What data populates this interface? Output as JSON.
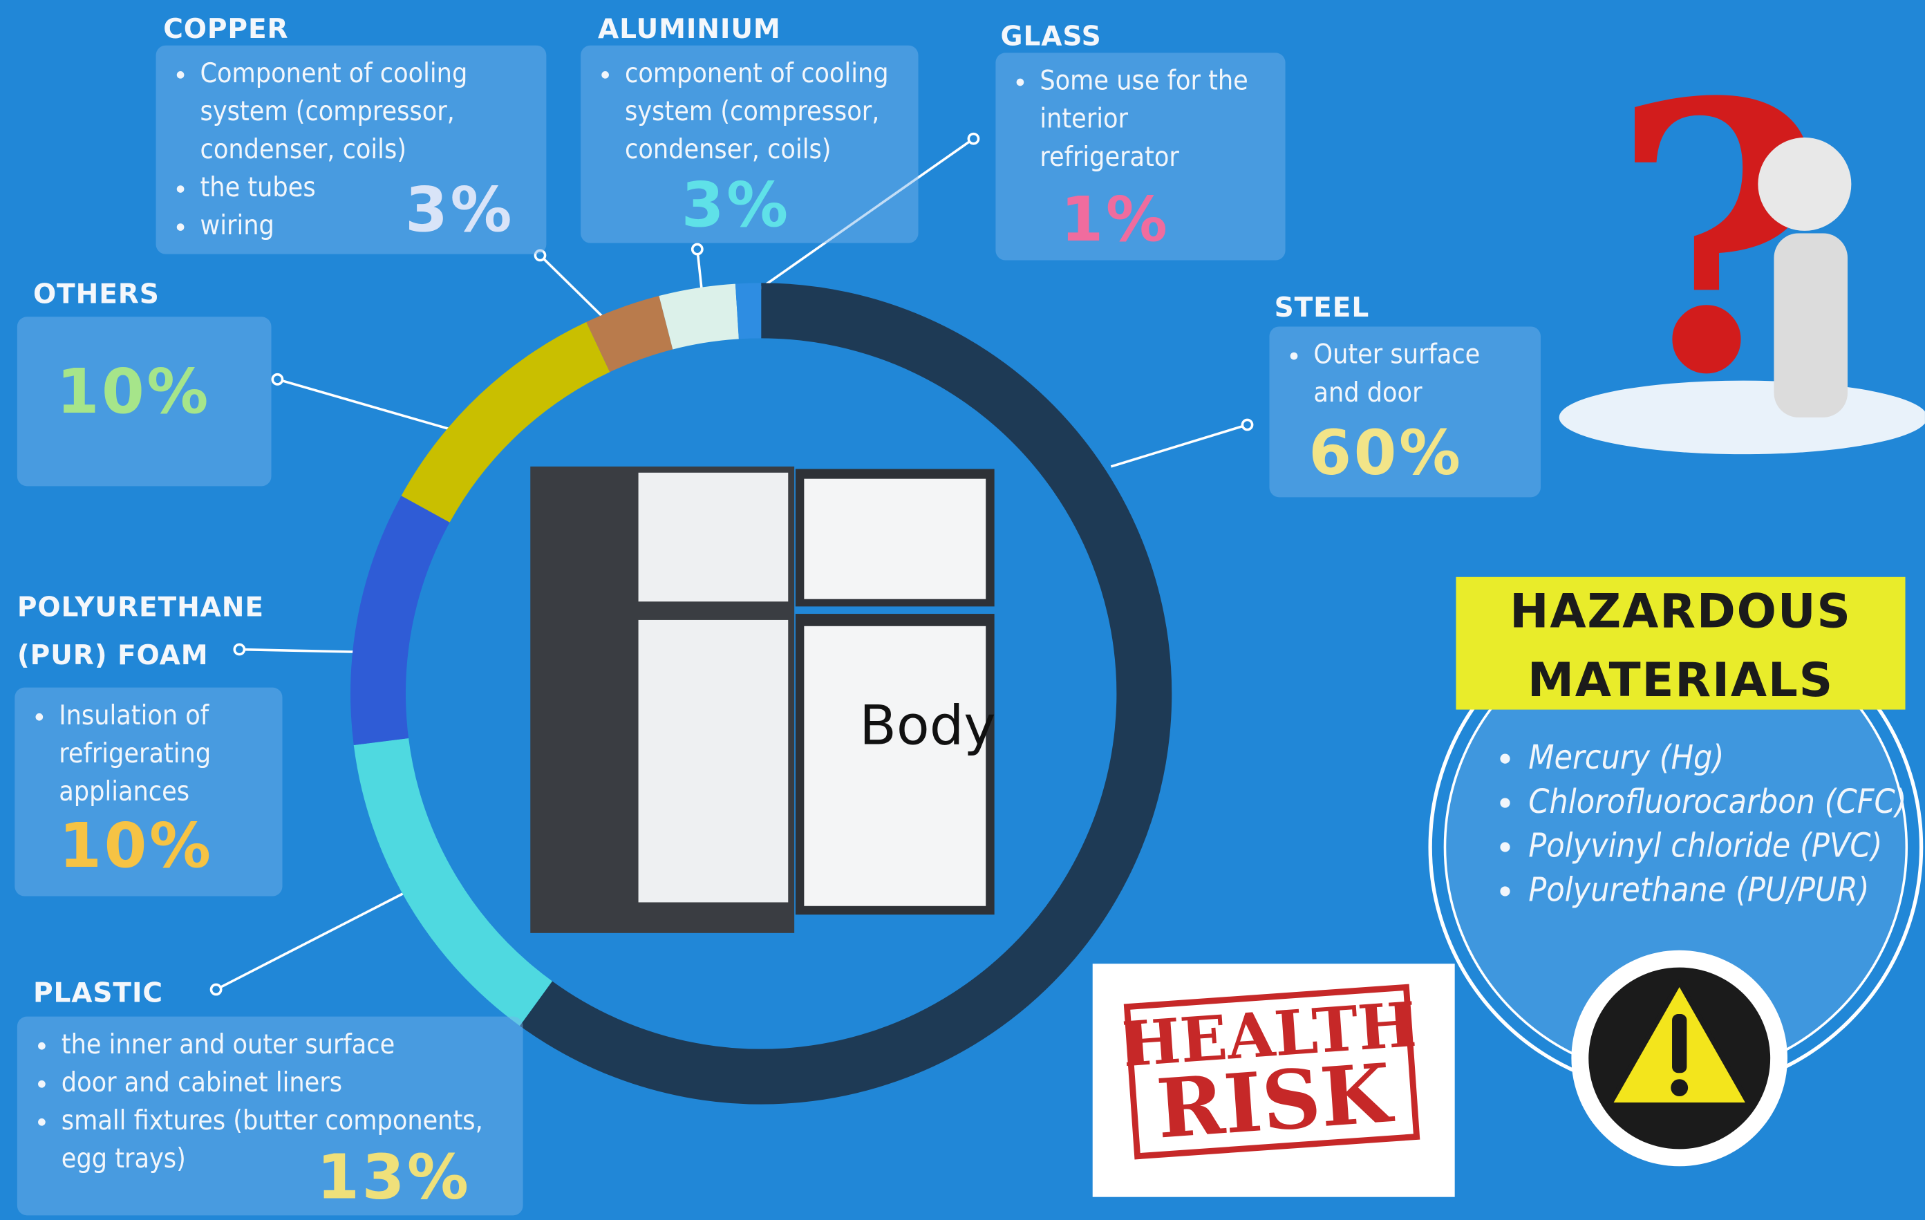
{
  "chart_data": {
    "type": "donut",
    "categories": [
      "STEEL",
      "PLASTIC",
      "POLYURETHANE (PUR) FOAM",
      "OTHERS",
      "COPPER",
      "ALUMINIUM",
      "GLASS"
    ],
    "values": [
      60,
      13,
      10,
      10,
      3,
      3,
      1
    ],
    "value_labels": [
      "60%",
      "13%",
      "10%",
      "10%",
      "3%",
      "3%",
      "1%"
    ],
    "colors": [
      "#1e3a55",
      "#4fd9e0",
      "#2f5cd6",
      "#c9bf00",
      "#b97b4c",
      "#dcf1ea",
      "#2e8de2"
    ],
    "label_colors": [
      "#f2e488",
      "#efe07a",
      "#f6c344",
      "#a6e58a",
      "#d9e4f8",
      "#5fe1e8",
      "#f06c9e"
    ],
    "descriptions": [
      [
        "Outer surface and door"
      ],
      [
        "the inner  and outer surface",
        "door and cabinet liners",
        "small fixtures (butter components, egg trays)"
      ],
      [
        "Insulation of refrigerating appliances"
      ],
      [],
      [
        "Component of cooling system (compressor, condenser, coils)",
        "the tubes",
        "wiring"
      ],
      [
        "component of cooling system (compressor, condenser, coils)"
      ],
      [
        "Some use for the interior refrigerator"
      ]
    ],
    "center_label": "Body"
  },
  "hazardous": {
    "title": "HAZARDOUS MATERIALS",
    "items": [
      "Mercury (Hg)",
      "Chlorofluorocarbon (CFC)",
      "Polyvinyl chloride (PVC)",
      "Polyurethane  (PU/PUR)"
    ]
  },
  "stamp": {
    "lines": [
      "HEALTH",
      "RISK"
    ]
  }
}
